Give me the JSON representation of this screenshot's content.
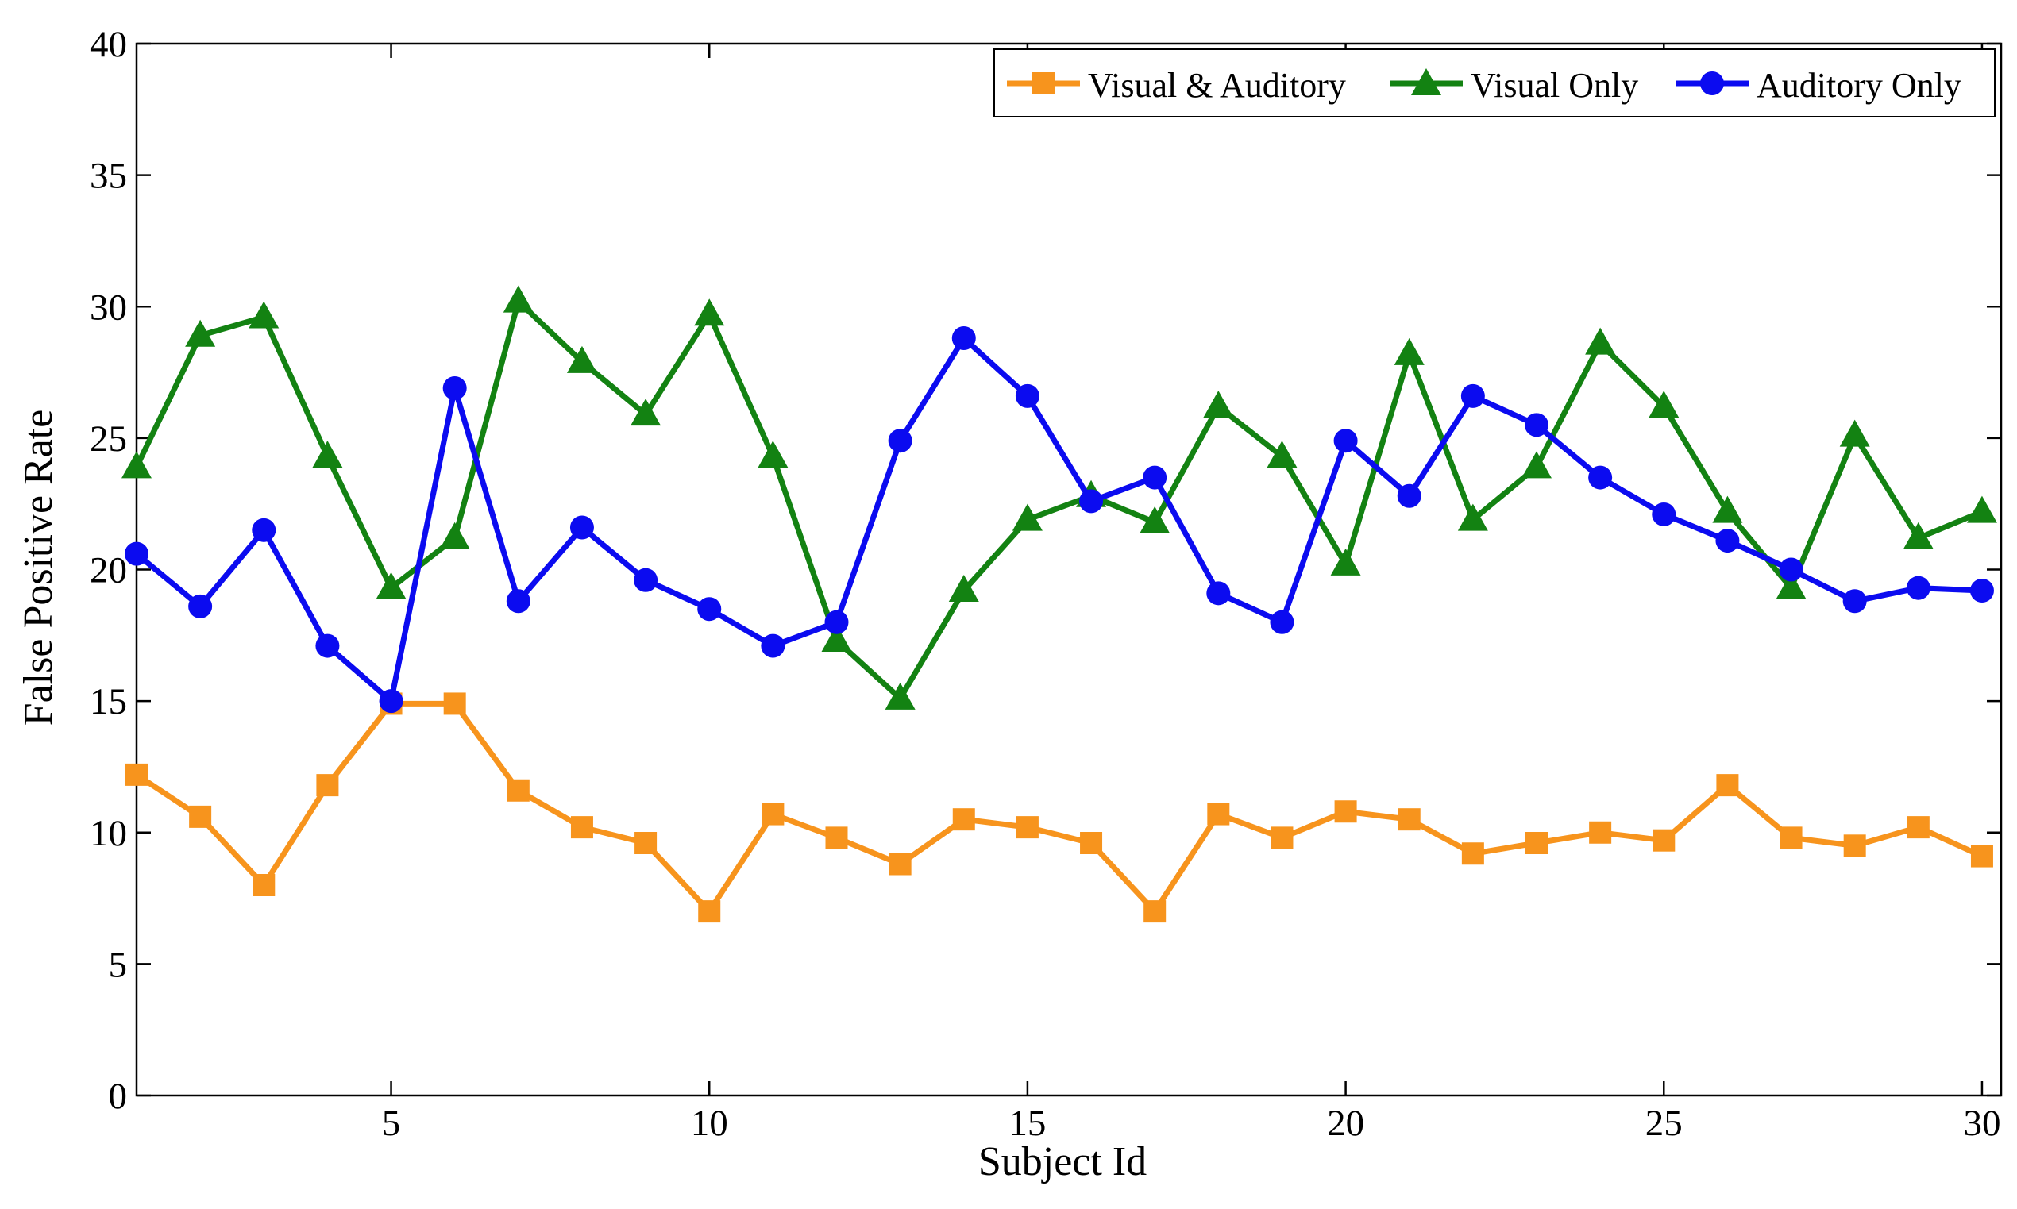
{
  "chart_data": {
    "type": "line",
    "title": "",
    "xlabel": "Subject Id",
    "ylabel": "False Positive Rate",
    "xlim": [
      1,
      30.3
    ],
    "ylim": [
      0,
      40
    ],
    "xticks": [
      5,
      10,
      15,
      20,
      25,
      30
    ],
    "yticks": [
      0,
      5,
      10,
      15,
      20,
      25,
      30,
      35,
      40
    ],
    "legend_position": "top-right",
    "grid": false,
    "x": [
      1,
      2,
      3,
      4,
      5,
      6,
      7,
      8,
      9,
      10,
      11,
      12,
      13,
      14,
      15,
      16,
      17,
      18,
      19,
      20,
      21,
      22,
      23,
      24,
      25,
      26,
      27,
      28,
      29,
      30
    ],
    "series": [
      {
        "name": "Visual & Auditory",
        "color": "#f7941d",
        "marker": "square",
        "values": [
          12.2,
          10.6,
          8.0,
          11.8,
          14.9,
          14.9,
          11.6,
          10.2,
          9.6,
          7.0,
          10.7,
          9.8,
          8.8,
          10.5,
          10.2,
          9.6,
          7.0,
          10.7,
          9.8,
          10.8,
          10.5,
          9.2,
          9.6,
          10.0,
          9.7,
          11.8,
          9.8,
          9.5,
          10.2,
          9.1
        ]
      },
      {
        "name": "Visual Only",
        "color": "#138212",
        "marker": "triangle",
        "values": [
          23.9,
          28.9,
          29.6,
          24.3,
          19.3,
          21.2,
          30.2,
          27.9,
          25.9,
          29.7,
          24.3,
          17.3,
          15.1,
          19.2,
          21.9,
          22.8,
          21.8,
          26.2,
          24.3,
          20.2,
          28.2,
          21.9,
          23.9,
          28.6,
          26.2,
          22.2,
          19.3,
          25.1,
          21.2,
          22.2
        ]
      },
      {
        "name": "Auditory Only",
        "color": "#0b0bf0",
        "marker": "circle",
        "values": [
          20.6,
          18.6,
          21.5,
          17.1,
          15.0,
          26.9,
          18.8,
          21.6,
          19.6,
          18.5,
          17.1,
          18.0,
          24.9,
          28.8,
          26.6,
          22.6,
          23.5,
          19.1,
          18.0,
          24.9,
          22.8,
          26.6,
          25.5,
          23.5,
          22.1,
          21.1,
          20.0,
          18.8,
          19.3,
          19.2
        ]
      }
    ]
  }
}
